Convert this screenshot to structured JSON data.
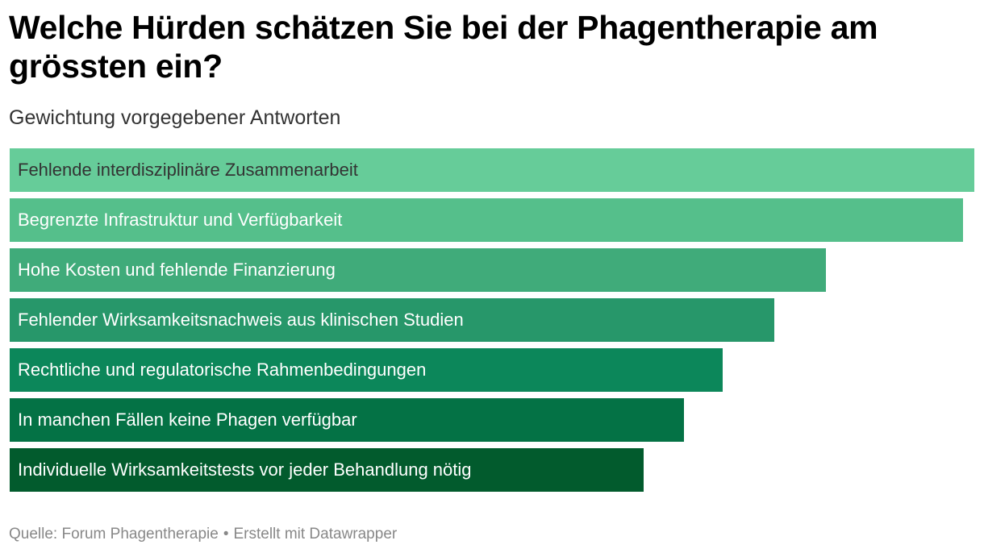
{
  "header": {
    "title": "Welche Hürden schätzen Sie bei der Phagentherapie am grössten ein?",
    "subtitle": "Gewichtung vorgegebener Antworten"
  },
  "chart_data": {
    "type": "bar",
    "orientation": "horizontal",
    "title": "Welche Hürden schätzen Sie bei der Phagentherapie am grössten ein?",
    "subtitle": "Gewichtung vorgegebener Antworten",
    "xlabel": "",
    "ylabel": "",
    "grid": false,
    "legend": "none",
    "value_labels_shown": false,
    "categories": [
      "Fehlende interdisziplinäre Zusammenarbeit",
      "Begrenzte Infrastruktur und Verfügbarkeit",
      "Hohe Kosten und fehlende Finanzierung",
      "Fehlender Wirksamkeitsnachweis aus klinischen Studien",
      "Rechtliche und regulatorische Rahmenbedingungen",
      "In manchen Fällen keine Phagen verfügbar",
      "Individuelle Wirksamkeitstests vor jeder Behandlung nötig"
    ],
    "values": [
      100,
      98.8,
      84.6,
      79.3,
      73.9,
      69.9,
      65.7
    ],
    "xlim": [
      0,
      100
    ],
    "colors": [
      "#66cc99",
      "#55bf8b",
      "#40ab7a",
      "#27976a",
      "#0c875a",
      "#047245",
      "#025b2d"
    ],
    "label_colors": [
      "#333333",
      "#ffffff",
      "#ffffff",
      "#ffffff",
      "#ffffff",
      "#ffffff",
      "#ffffff"
    ]
  },
  "footer": {
    "source_label": "Quelle: Forum Phagentherapie",
    "separator": "•",
    "credit": "Erstellt mit Datawrapper"
  }
}
